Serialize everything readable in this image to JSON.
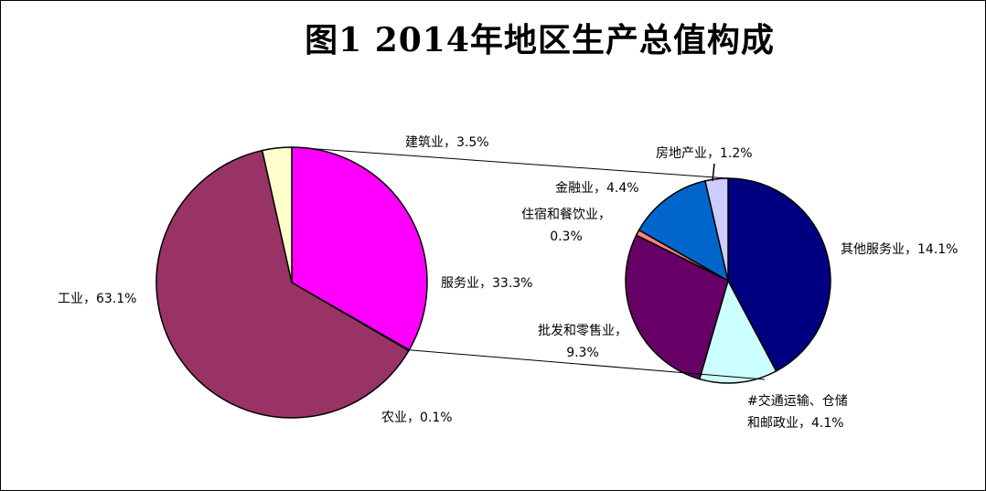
{
  "chart_data": {
    "type": "pie",
    "title": "图1 2014年地区生产总值构成",
    "main_pie": {
      "slices": [
        {
          "label": "服务业，33.3%",
          "value": 33.3,
          "color": "#FF00FF"
        },
        {
          "label": "农业，0.1%",
          "value": 0.1,
          "color": "#993366"
        },
        {
          "label": "工业，63.1%",
          "value": 63.1,
          "color": "#993366"
        },
        {
          "label": "建筑业，3.5%",
          "value": 3.5,
          "color": "#FFFFCC"
        }
      ]
    },
    "secondary_pie": {
      "slices": [
        {
          "label": [
            "其他服务业，14.1%"
          ],
          "value": 14.1,
          "color": "#000080"
        },
        {
          "label": [
            "#交通运输、仓储",
            "和邮政业，4.1%"
          ],
          "value": 4.1,
          "color": "#CCFFFF"
        },
        {
          "label": [
            "批发和零售业，",
            "9.3%"
          ],
          "value": 9.3,
          "color": "#660066"
        },
        {
          "label": [
            "住宿和餐饮业，",
            "0.3%"
          ],
          "value": 0.3,
          "color": "#FF8080"
        },
        {
          "label": [
            "金融业，4.4%"
          ],
          "value": 4.4,
          "color": "#0066CC"
        },
        {
          "label": [
            "房地产业，1.2%"
          ],
          "value": 1.2,
          "color": "#CCCCFF"
        }
      ]
    }
  }
}
